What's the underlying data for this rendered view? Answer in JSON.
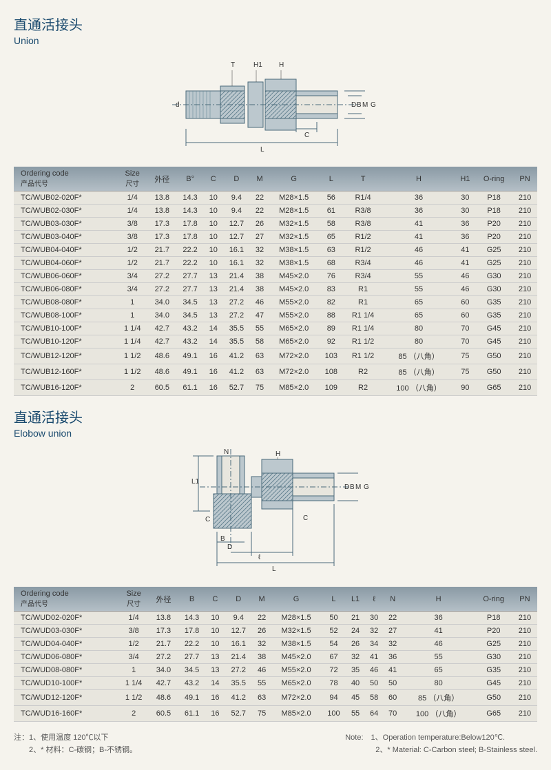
{
  "section1": {
    "title_cn": "直通活接头",
    "title_en": "Union",
    "diagram_labels": {
      "T": "T",
      "H1": "H1",
      "H": "H",
      "d": "d",
      "D": "D",
      "B": "B",
      "M": "M",
      "G": "G",
      "C": "C",
      "L": "L"
    },
    "columns": [
      {
        "hdr": "Ordering code",
        "sub": "产品代号"
      },
      {
        "hdr": "Size",
        "sub": "尺寸"
      },
      {
        "hdr": "外径",
        "sub": ""
      },
      {
        "hdr": "B°",
        "sub": ""
      },
      {
        "hdr": "C",
        "sub": ""
      },
      {
        "hdr": "D",
        "sub": ""
      },
      {
        "hdr": "M",
        "sub": ""
      },
      {
        "hdr": "G",
        "sub": ""
      },
      {
        "hdr": "L",
        "sub": ""
      },
      {
        "hdr": "T",
        "sub": ""
      },
      {
        "hdr": "H",
        "sub": ""
      },
      {
        "hdr": "H1",
        "sub": ""
      },
      {
        "hdr": "O-ring",
        "sub": ""
      },
      {
        "hdr": "PN",
        "sub": ""
      }
    ],
    "rows": [
      [
        "TC/WUB02-020F*",
        "1/4",
        "13.8",
        "14.3",
        "10",
        "9.4",
        "22",
        "M28×1.5",
        "56",
        "R1/4",
        "36",
        "30",
        "P18",
        "210"
      ],
      [
        "TC/WUB02-030F*",
        "1/4",
        "13.8",
        "14.3",
        "10",
        "9.4",
        "22",
        "M28×1.5",
        "61",
        "R3/8",
        "36",
        "30",
        "P18",
        "210"
      ],
      [
        "TC/WUB03-030F*",
        "3/8",
        "17.3",
        "17.8",
        "10",
        "12.7",
        "26",
        "M32×1.5",
        "58",
        "R3/8",
        "41",
        "36",
        "P20",
        "210"
      ],
      [
        "TC/WUB03-040F*",
        "3/8",
        "17.3",
        "17.8",
        "10",
        "12.7",
        "27",
        "M32×1.5",
        "65",
        "R1/2",
        "41",
        "36",
        "P20",
        "210"
      ],
      [
        "TC/WUB04-040F*",
        "1/2",
        "21.7",
        "22.2",
        "10",
        "16.1",
        "32",
        "M38×1.5",
        "63",
        "R1/2",
        "46",
        "41",
        "G25",
        "210"
      ],
      [
        "TC/WUB04-060F*",
        "1/2",
        "21.7",
        "22.2",
        "10",
        "16.1",
        "32",
        "M38×1.5",
        "68",
        "R3/4",
        "46",
        "41",
        "G25",
        "210"
      ],
      [
        "TC/WUB06-060F*",
        "3/4",
        "27.2",
        "27.7",
        "13",
        "21.4",
        "38",
        "M45×2.0",
        "76",
        "R3/4",
        "55",
        "46",
        "G30",
        "210"
      ],
      [
        "TC/WUB06-080F*",
        "3/4",
        "27.2",
        "27.7",
        "13",
        "21.4",
        "38",
        "M45×2.0",
        "83",
        "R1",
        "55",
        "46",
        "G30",
        "210"
      ],
      [
        "TC/WUB08-080F*",
        "1",
        "34.0",
        "34.5",
        "13",
        "27.2",
        "46",
        "M55×2.0",
        "82",
        "R1",
        "65",
        "60",
        "G35",
        "210"
      ],
      [
        "TC/WUB08-100F*",
        "1",
        "34.0",
        "34.5",
        "13",
        "27.2",
        "47",
        "M55×2.0",
        "88",
        "R1 1/4",
        "65",
        "60",
        "G35",
        "210"
      ],
      [
        "TC/WUB10-100F*",
        "1 1/4",
        "42.7",
        "43.2",
        "14",
        "35.5",
        "55",
        "M65×2.0",
        "89",
        "R1 1/4",
        "80",
        "70",
        "G45",
        "210"
      ],
      [
        "TC/WUB10-120F*",
        "1 1/4",
        "42.7",
        "43.2",
        "14",
        "35.5",
        "58",
        "M65×2.0",
        "92",
        "R1 1/2",
        "80",
        "70",
        "G45",
        "210"
      ],
      [
        "TC/WUB12-120F*",
        "1 1/2",
        "48.6",
        "49.1",
        "16",
        "41.2",
        "63",
        "M72×2.0",
        "103",
        "R1 1/2",
        "85 （八角）",
        "75",
        "G50",
        "210"
      ],
      [
        "TC/WUB12-160F*",
        "1 1/2",
        "48.6",
        "49.1",
        "16",
        "41.2",
        "63",
        "M72×2.0",
        "108",
        "R2",
        "85 （八角）",
        "75",
        "G50",
        "210"
      ],
      [
        "TC/WUB16-120F*",
        "2",
        "60.5",
        "61.1",
        "16",
        "52.7",
        "75",
        "M85×2.0",
        "109",
        "R2",
        "100 （八角）",
        "90",
        "G65",
        "210"
      ]
    ]
  },
  "section2": {
    "title_cn": "直通活接头",
    "title_en": "Elobow union",
    "diagram_labels": {
      "N": "N",
      "H": "H",
      "D": "D",
      "B": "B",
      "M": "M",
      "G": "G",
      "C": "C",
      "L1": "L1",
      "l": "ℓ",
      "L": "L"
    },
    "columns": [
      {
        "hdr": "Ordering code",
        "sub": "产品代号"
      },
      {
        "hdr": "Size",
        "sub": "尺寸"
      },
      {
        "hdr": "外径",
        "sub": ""
      },
      {
        "hdr": "B",
        "sub": ""
      },
      {
        "hdr": "C",
        "sub": ""
      },
      {
        "hdr": "D",
        "sub": ""
      },
      {
        "hdr": "M",
        "sub": ""
      },
      {
        "hdr": "G",
        "sub": ""
      },
      {
        "hdr": "L",
        "sub": ""
      },
      {
        "hdr": "L1",
        "sub": ""
      },
      {
        "hdr": "ℓ",
        "sub": ""
      },
      {
        "hdr": "N",
        "sub": ""
      },
      {
        "hdr": "H",
        "sub": ""
      },
      {
        "hdr": "O-ring",
        "sub": ""
      },
      {
        "hdr": "PN",
        "sub": ""
      }
    ],
    "rows": [
      [
        "TC/WUD02-020F*",
        "1/4",
        "13.8",
        "14.3",
        "10",
        "9.4",
        "22",
        "M28×1.5",
        "50",
        "21",
        "30",
        "22",
        "36",
        "P18",
        "210"
      ],
      [
        "TC/WUD03-030F*",
        "3/8",
        "17.3",
        "17.8",
        "10",
        "12.7",
        "26",
        "M32×1.5",
        "52",
        "24",
        "32",
        "27",
        "41",
        "P20",
        "210"
      ],
      [
        "TC/WUD04-040F*",
        "1/2",
        "21.7",
        "22.2",
        "10",
        "16.1",
        "32",
        "M38×1.5",
        "54",
        "26",
        "34",
        "32",
        "46",
        "G25",
        "210"
      ],
      [
        "TC/WUD06-080F*",
        "3/4",
        "27.2",
        "27.7",
        "13",
        "21.4",
        "38",
        "M45×2.0",
        "67",
        "32",
        "41",
        "36",
        "55",
        "G30",
        "210"
      ],
      [
        "TC/WUD08-080F*",
        "1",
        "34.0",
        "34.5",
        "13",
        "27.2",
        "46",
        "M55×2.0",
        "72",
        "35",
        "46",
        "41",
        "65",
        "G35",
        "210"
      ],
      [
        "TC/WUD10-100F*",
        "1 1/4",
        "42.7",
        "43.2",
        "14",
        "35.5",
        "55",
        "M65×2.0",
        "78",
        "40",
        "50",
        "50",
        "80",
        "G45",
        "210"
      ],
      [
        "TC/WUD12-120F*",
        "1 1/2",
        "48.6",
        "49.1",
        "16",
        "41.2",
        "63",
        "M72×2.0",
        "94",
        "45",
        "58",
        "60",
        "85 （八角）",
        "G50",
        "210"
      ],
      [
        "TC/WUD16-160F*",
        "2",
        "60.5",
        "61.1",
        "16",
        "52.7",
        "75",
        "M85×2.0",
        "100",
        "55",
        "64",
        "70",
        "100 （八角）",
        "G65",
        "210"
      ]
    ]
  },
  "notes": {
    "cn1": "注：1、使用温度 120℃以下",
    "cn2": "　　2、* 材料：C-碳钢；B-不锈钢。",
    "en1": "Note:　1、Operation temperature:Below120℃.",
    "en2": "　　　　2、* Material: C-Carbon steel; B-Stainless steel."
  },
  "colors": {
    "header_bg": "#8a9aa5",
    "row_bg": "#e8e6de",
    "title": "#1a4a6e"
  }
}
